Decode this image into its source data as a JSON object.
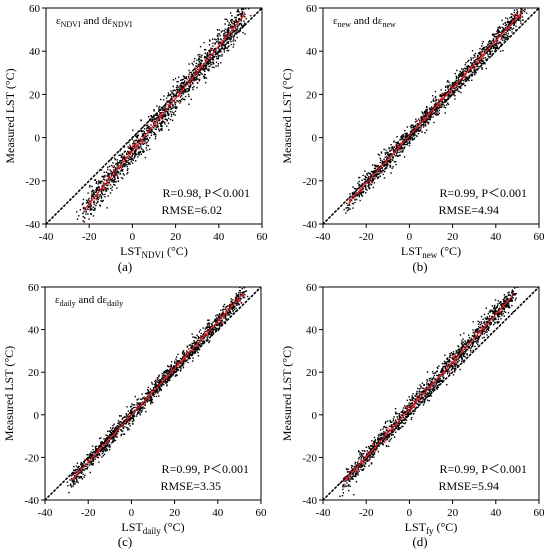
{
  "panels": [
    {
      "id": "a",
      "label": "(a)",
      "legend": [
        {
          "t": "ε",
          "sub": ""
        },
        {
          "t": "",
          "sub": "NDVI"
        },
        {
          "t": " and dε",
          "sub": ""
        },
        {
          "t": "",
          "sub": "NDVI"
        }
      ],
      "xlabel_main": "LST",
      "xlabel_sub": "NDVI",
      "xlabel_unit": " (°C)",
      "ylabel": "Measured LST (°C)",
      "stat_r": "R=0.98, P＜0.001",
      "stat_rmse": "RMSE=6.02"
    },
    {
      "id": "b",
      "label": "(b)",
      "legend": [
        {
          "t": "ε",
          "sub": ""
        },
        {
          "t": "",
          "sub": "new"
        },
        {
          "t": " and dε",
          "sub": ""
        },
        {
          "t": "",
          "sub": "new"
        }
      ],
      "xlabel_main": "LST",
      "xlabel_sub": "new",
      "xlabel_unit": " (°C)",
      "ylabel": "Measured LST (°C)",
      "stat_r": "R=0.99, P＜0.001",
      "stat_rmse": "RMSE=4.94"
    },
    {
      "id": "c",
      "label": "(c)",
      "legend": [
        {
          "t": "ε",
          "sub": ""
        },
        {
          "t": "",
          "sub": "daily"
        },
        {
          "t": " and dε",
          "sub": ""
        },
        {
          "t": "",
          "sub": "daily"
        }
      ],
      "xlabel_main": "LST",
      "xlabel_sub": "daily",
      "xlabel_unit": " (°C)",
      "ylabel": "Measured LST (°C)",
      "stat_r": "R=0.99, P＜0.001",
      "stat_rmse": "RMSE=3.35"
    },
    {
      "id": "d",
      "label": "(d)",
      "legend": [],
      "xlabel_main": "LST",
      "xlabel_sub": "fy",
      "xlabel_unit": " (°C)",
      "ylabel": "Measured LST (°C)",
      "stat_r": "R=0.99, P＜0.001",
      "stat_rmse": "RMSE=5.94"
    }
  ],
  "colors": {
    "points": "#000000",
    "fit_line": "#e0202a",
    "one_to_one": "#000000"
  },
  "chart_data": [
    {
      "type": "scatter",
      "panel": "a",
      "xlabel": "LST_NDVI (°C)",
      "ylabel": "Measured LST (°C)",
      "xlim": [
        -40,
        60
      ],
      "ylim": [
        -40,
        60
      ],
      "xticks": [
        -40,
        -20,
        0,
        20,
        40,
        60
      ],
      "yticks": [
        -40,
        -20,
        0,
        20,
        40,
        60
      ],
      "reference_line": "1:1 dotted",
      "fit_line": {
        "x": [
          -22,
          52
        ],
        "y": [
          -33,
          57
        ]
      },
      "point_cloud": {
        "x_range": [
          -22,
          52
        ],
        "spread": 6.5,
        "n_approx": 1500
      },
      "stats": {
        "R": 0.98,
        "P": "<0.001",
        "RMSE": 6.02
      }
    },
    {
      "type": "scatter",
      "panel": "b",
      "xlabel": "LST_new (°C)",
      "ylabel": "Measured LST (°C)",
      "xlim": [
        -40,
        60
      ],
      "ylim": [
        -40,
        60
      ],
      "xticks": [
        -40,
        -20,
        0,
        20,
        40,
        60
      ],
      "yticks": [
        -40,
        -20,
        0,
        20,
        40,
        60
      ],
      "reference_line": "1:1 dotted",
      "fit_line": {
        "x": [
          -28,
          52
        ],
        "y": [
          -30,
          58
        ]
      },
      "point_cloud": {
        "x_range": [
          -28,
          52
        ],
        "spread": 4.5,
        "n_approx": 1500
      },
      "stats": {
        "R": 0.99,
        "P": "<0.001",
        "RMSE": 4.94
      }
    },
    {
      "type": "scatter",
      "panel": "c",
      "xlabel": "LST_daily (°C)",
      "ylabel": "Measured LST (°C)",
      "xlim": [
        -40,
        60
      ],
      "ylim": [
        -40,
        60
      ],
      "xticks": [
        -40,
        -20,
        0,
        20,
        40,
        60
      ],
      "yticks": [
        -40,
        -20,
        0,
        20,
        40,
        60
      ],
      "reference_line": "1:1 dotted",
      "fit_line": {
        "x": [
          -28,
          52
        ],
        "y": [
          -31,
          57
        ]
      },
      "point_cloud": {
        "x_range": [
          -28,
          52
        ],
        "spread": 3.8,
        "n_approx": 1500
      },
      "stats": {
        "R": 0.99,
        "P": "<0.001",
        "RMSE": 3.35
      }
    },
    {
      "type": "scatter",
      "panel": "d",
      "xlabel": "LST_fy (°C)",
      "ylabel": "Measured LST (°C)",
      "xlim": [
        -40,
        60
      ],
      "ylim": [
        -40,
        60
      ],
      "xticks": [
        -40,
        -20,
        0,
        20,
        40,
        60
      ],
      "yticks": [
        -40,
        -20,
        0,
        20,
        40,
        60
      ],
      "reference_line": "1:1 dotted",
      "fit_line": {
        "x": [
          -30,
          48
        ],
        "y": [
          -31,
          56
        ]
      },
      "point_cloud": {
        "x_range": [
          -30,
          48
        ],
        "spread": 4.6,
        "n_approx": 1500
      },
      "stats": {
        "R": 0.99,
        "P": "<0.001",
        "RMSE": 5.94
      }
    }
  ]
}
